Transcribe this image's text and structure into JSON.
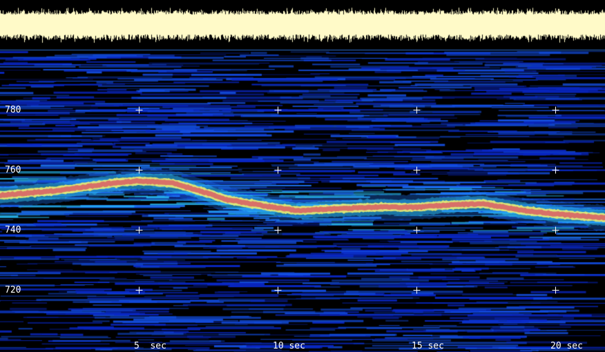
{
  "chart_data": {
    "type": "heatmap",
    "title": "",
    "xlabel": "",
    "ylabel": "",
    "x_unit": "sec",
    "xlim": [
      0,
      21.8
    ],
    "ylim": [
      705,
      800
    ],
    "x_ticks": [
      {
        "value": 5,
        "label": "5  sec"
      },
      {
        "value": 10,
        "label": "10 sec"
      },
      {
        "value": 15,
        "label": "15 sec"
      },
      {
        "value": 20,
        "label": "20 sec"
      }
    ],
    "y_ticks": [
      {
        "value": 780,
        "label": "780"
      },
      {
        "value": 760,
        "label": "760"
      },
      {
        "value": 740,
        "label": "740"
      },
      {
        "value": 720,
        "label": "720"
      }
    ],
    "grid": "crosshair markers at tick intersections",
    "ridge_track": {
      "x": [
        0,
        2,
        4,
        5,
        6.2,
        7.2,
        8.2,
        9.5,
        10.7,
        12,
        13.7,
        15,
        16,
        17.4,
        18.9,
        20,
        21.8
      ],
      "y": [
        751.5,
        753,
        755.5,
        756.3,
        755.6,
        753,
        750,
        748,
        746.4,
        747,
        747.6,
        747.5,
        748.2,
        748.7,
        746.4,
        745.3,
        744
      ]
    },
    "waveform_strip": "top",
    "colormap": [
      "#000000",
      "#0a1ec8",
      "#1e64ff",
      "#30d0ff",
      "#f0f070",
      "#e07070"
    ]
  }
}
